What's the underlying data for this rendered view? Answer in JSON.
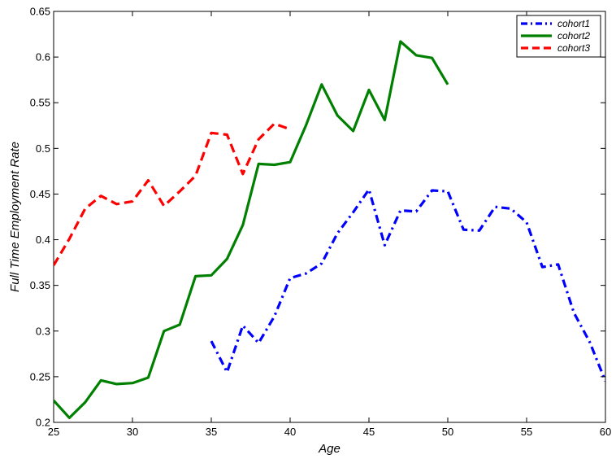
{
  "chart_data": {
    "type": "line",
    "title": "",
    "xlabel": "Age",
    "ylabel": "Full Time Employment Rate",
    "xlim": [
      25,
      60
    ],
    "ylim": [
      0.2,
      0.65
    ],
    "xticks": [
      25,
      30,
      35,
      40,
      45,
      50,
      55,
      60
    ],
    "yticks": [
      0.2,
      0.25,
      0.3,
      0.35,
      0.4,
      0.45,
      0.5,
      0.55,
      0.6,
      0.65
    ],
    "grid": false,
    "legend": "top-right",
    "series": [
      {
        "name": "cohort1",
        "color": "#0000ff",
        "style": "dashdot",
        "x": [
          35,
          36,
          37,
          38,
          39,
          40,
          41,
          42,
          43,
          44,
          45,
          46,
          47,
          48,
          49,
          50,
          51,
          52,
          53,
          54,
          55,
          56,
          57,
          58,
          59,
          60
        ],
        "y": [
          0.289,
          0.255,
          0.306,
          0.287,
          0.316,
          0.358,
          0.363,
          0.374,
          0.407,
          0.43,
          0.455,
          0.394,
          0.432,
          0.431,
          0.454,
          0.453,
          0.411,
          0.41,
          0.436,
          0.434,
          0.419,
          0.37,
          0.373,
          0.32,
          0.288,
          0.245
        ]
      },
      {
        "name": "cohort2",
        "color": "#008000",
        "style": "solid",
        "x": [
          25,
          26,
          27,
          28,
          29,
          30,
          31,
          32,
          33,
          34,
          35,
          36,
          37,
          38,
          39,
          40,
          41,
          42,
          43,
          44,
          45,
          46,
          47,
          48,
          49,
          50
        ],
        "y": [
          0.224,
          0.205,
          0.222,
          0.246,
          0.242,
          0.243,
          0.249,
          0.3,
          0.307,
          0.36,
          0.361,
          0.379,
          0.416,
          0.483,
          0.482,
          0.485,
          0.525,
          0.57,
          0.536,
          0.519,
          0.564,
          0.531,
          0.617,
          0.602,
          0.599,
          0.57
        ]
      },
      {
        "name": "cohort3",
        "color": "#ff0000",
        "style": "dashed",
        "x": [
          25,
          26,
          27,
          28,
          29,
          30,
          31,
          32,
          33,
          34,
          35,
          36,
          37,
          38,
          39,
          40
        ],
        "y": [
          0.372,
          0.401,
          0.434,
          0.448,
          0.439,
          0.442,
          0.465,
          0.437,
          0.453,
          0.47,
          0.517,
          0.515,
          0.472,
          0.51,
          0.527,
          0.521
        ]
      }
    ]
  }
}
